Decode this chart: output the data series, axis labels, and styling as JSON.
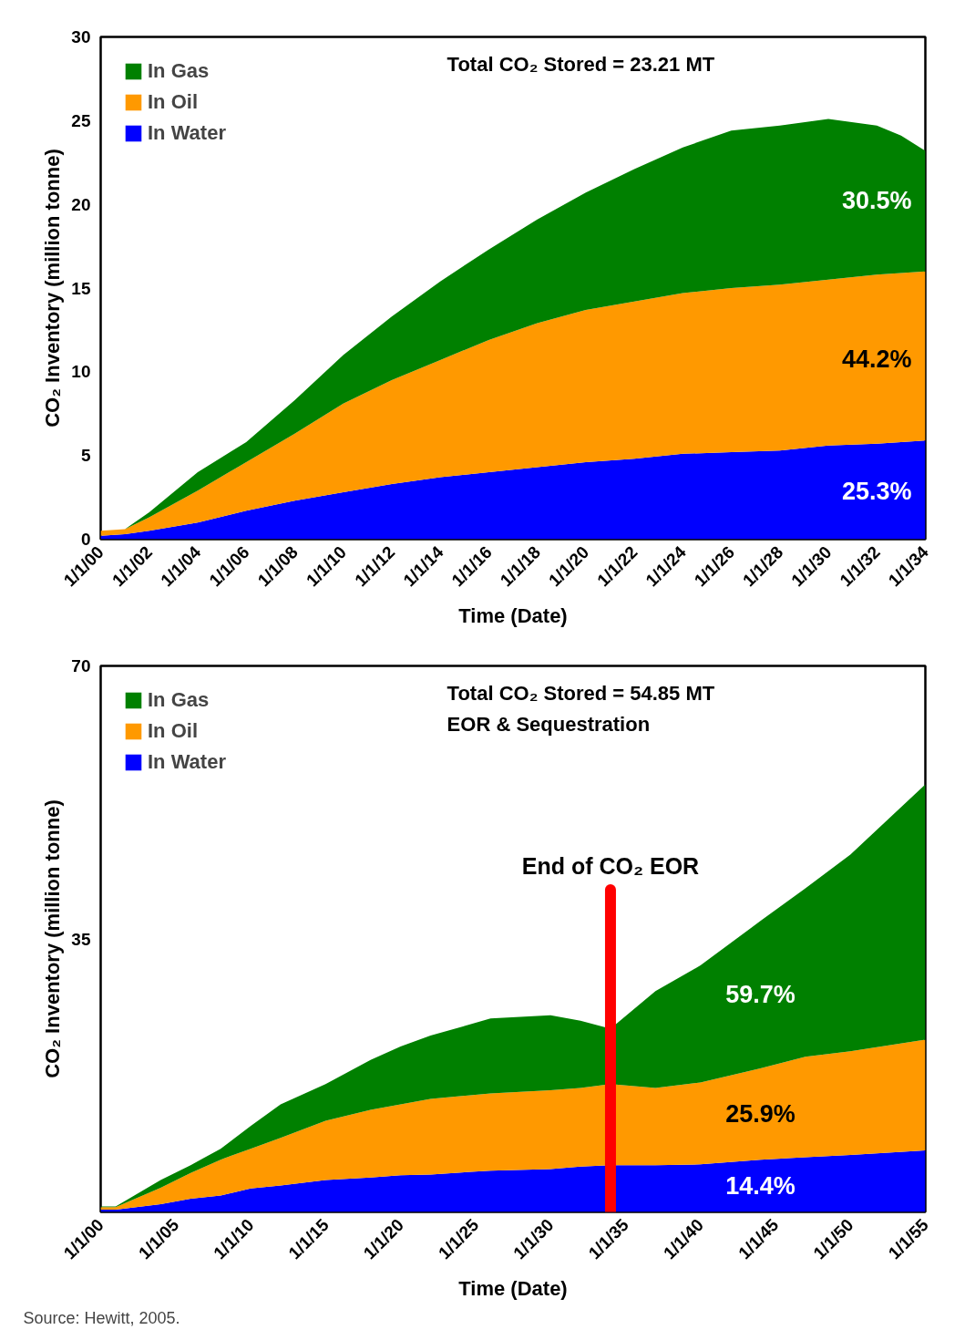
{
  "chart_data": [
    {
      "type": "area",
      "stacked": true,
      "xlabel": "Time (Date)",
      "ylabel": "CO₂ Inventory (million tonne)",
      "x": [
        "2000",
        "2001",
        "2002",
        "2004",
        "2006",
        "2008",
        "2010",
        "2012",
        "2014",
        "2016",
        "2018",
        "2020",
        "2022",
        "2024",
        "2026",
        "2028",
        "2030",
        "2032",
        "2033",
        "2034"
      ],
      "series": [
        {
          "name": "In Water",
          "color": "#0000ff",
          "values": [
            0.2,
            0.3,
            0.5,
            1.0,
            1.7,
            2.3,
            2.8,
            3.3,
            3.7,
            4.0,
            4.3,
            4.6,
            4.8,
            5.1,
            5.2,
            5.3,
            5.6,
            5.7,
            5.8,
            5.9
          ]
        },
        {
          "name": "In Oil",
          "color": "#ff9900",
          "values": [
            0.3,
            0.3,
            0.8,
            1.9,
            2.9,
            4.0,
            5.3,
            6.2,
            7.0,
            7.9,
            8.6,
            9.1,
            9.4,
            9.6,
            9.8,
            9.9,
            9.9,
            10.1,
            10.1,
            10.1
          ]
        },
        {
          "name": "In Gas",
          "color": "#008000",
          "values": [
            0,
            0,
            0.3,
            1.1,
            1.2,
            2.0,
            2.9,
            3.8,
            4.7,
            5.4,
            6.2,
            7.0,
            7.9,
            8.7,
            9.4,
            9.5,
            9.6,
            8.9,
            8.2,
            7.2
          ]
        }
      ],
      "xlim": [
        "2000",
        "2034"
      ],
      "xticks": [
        {
          "value": "2000",
          "label": "1/1/00"
        },
        {
          "value": "2002",
          "label": "1/1/02"
        },
        {
          "value": "2004",
          "label": "1/1/04"
        },
        {
          "value": "2006",
          "label": "1/1/06"
        },
        {
          "value": "2008",
          "label": "1/1/08"
        },
        {
          "value": "2010",
          "label": "1/1/10"
        },
        {
          "value": "2012",
          "label": "1/1/12"
        },
        {
          "value": "2014",
          "label": "1/1/14"
        },
        {
          "value": "2016",
          "label": "1/1/16"
        },
        {
          "value": "2018",
          "label": "1/1/18"
        },
        {
          "value": "2020",
          "label": "1/1/20"
        },
        {
          "value": "2022",
          "label": "1/1/22"
        },
        {
          "value": "2024",
          "label": "1/1/24"
        },
        {
          "value": "2026",
          "label": "1/1/26"
        },
        {
          "value": "2028",
          "label": "1/1/28"
        },
        {
          "value": "2030",
          "label": "1/1/30"
        },
        {
          "value": "2032",
          "label": "1/1/32"
        },
        {
          "value": "2034",
          "label": "1/1/34"
        }
      ],
      "ylim": [
        0,
        30
      ],
      "yticks": [
        0,
        5,
        10,
        15,
        20,
        25,
        30
      ],
      "legend": "top left",
      "annotations": [
        "Total CO₂ Stored = 23.21 MT",
        "30.5%",
        "44.2%",
        "25.3%"
      ]
    },
    {
      "type": "area",
      "stacked": true,
      "xlabel": "Time (Date)",
      "ylabel": "CO₂ Inventory (million tonne)",
      "x": [
        "2000",
        "2001",
        "2004",
        "2006",
        "2008",
        "2010",
        "2012",
        "2015",
        "2018",
        "2020",
        "2022",
        "2026",
        "2030",
        "2032",
        "2034",
        "2037",
        "2040",
        "2044",
        "2047",
        "2050",
        "2055"
      ],
      "series": [
        {
          "name": "In Water",
          "color": "#0000ff",
          "values": [
            0.3,
            0.3,
            1.0,
            1.7,
            2.1,
            3.0,
            3.4,
            4.1,
            4.4,
            4.7,
            4.8,
            5.3,
            5.5,
            5.8,
            6.0,
            6.0,
            6.1,
            6.7,
            7.0,
            7.3,
            7.9
          ]
        },
        {
          "name": "In Oil",
          "color": "#ff9900",
          "values": [
            0.3,
            0.3,
            2.1,
            3.3,
            4.6,
            5.1,
            6.1,
            7.6,
            8.7,
            9.1,
            9.7,
            9.9,
            10.1,
            10.1,
            10.4,
            9.9,
            10.5,
            11.7,
            12.9,
            13.3,
            14.2
          ]
        },
        {
          "name": "In Gas",
          "color": "#008000",
          "values": [
            0.1,
            0.1,
            1.0,
            1.0,
            1.4,
            2.9,
            4.3,
            4.7,
            6.4,
            7.4,
            8.1,
            9.6,
            9.6,
            8.6,
            7.1,
            12.4,
            15.0,
            18.9,
            21.6,
            25.2,
            32.7
          ]
        }
      ],
      "xlim": [
        "2000",
        "2055"
      ],
      "xticks": [
        {
          "value": "2000",
          "label": "1/1/00"
        },
        {
          "value": "2005",
          "label": "1/1/05"
        },
        {
          "value": "2010",
          "label": "1/1/10"
        },
        {
          "value": "2015",
          "label": "1/1/15"
        },
        {
          "value": "2020",
          "label": "1/1/20"
        },
        {
          "value": "2025",
          "label": "1/1/25"
        },
        {
          "value": "2030",
          "label": "1/1/30"
        },
        {
          "value": "2035",
          "label": "1/1/35"
        },
        {
          "value": "2040",
          "label": "1/1/40"
        },
        {
          "value": "2045",
          "label": "1/1/45"
        },
        {
          "value": "2050",
          "label": "1/1/50"
        },
        {
          "value": "2055",
          "label": "1/1/55"
        }
      ],
      "ylim": [
        0,
        70
      ],
      "yticks": [
        35,
        70
      ],
      "legend": "top left",
      "ref_lines": [
        {
          "axis": "x",
          "value": "2034",
          "label": "End of CO₂ EOR",
          "color": "#ff0000"
        }
      ],
      "annotations": [
        "Total CO₂ Stored = 54.85 MT",
        "EOR & Sequestration",
        "59.7%",
        "25.9%",
        "14.4%",
        "Source: Hewitt, 2005."
      ]
    }
  ]
}
